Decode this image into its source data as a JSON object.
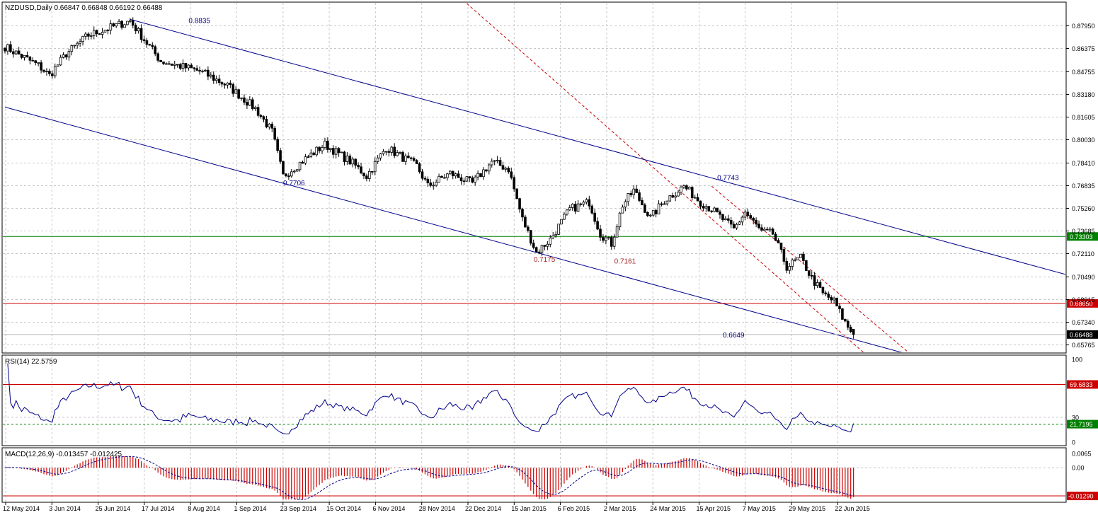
{
  "window": {
    "title": "NZDUSD,Daily 0.66847 0.66848 0.66192 0.66488"
  },
  "chart_data": [
    {
      "type": "candlestick",
      "symbol": "NZDUSD",
      "timeframe": "Daily",
      "header": "NZDUSD,Daily  0.66847 0.66848 0.66192 0.66488",
      "last_quote": {
        "open": 0.66847,
        "high": 0.66848,
        "low": 0.66192,
        "close": 0.66488
      },
      "ylim": [
        0.6525,
        0.895
      ],
      "y_ticks": [
        "0.87950",
        "0.86375",
        "0.84755",
        "0.83180",
        "0.81605",
        "0.80030",
        "0.78410",
        "0.76835",
        "0.75260",
        "0.73685",
        "0.72110",
        "0.70490",
        "0.68915",
        "0.67340",
        "0.65765"
      ],
      "x_ticks": [
        "12 May 2014",
        "3 Jun 2014",
        "25 Jun 2014",
        "17 Jul 2014",
        "8 Aug 2014",
        "1 Sep 2014",
        "23 Sep 2014",
        "15 Oct 2014",
        "6 Nov 2014",
        "28 Nov 2014",
        "22 Dec 2014",
        "15 Jan 2015",
        "6 Feb 2015",
        "2 Mar 2015",
        "24 Mar 2015",
        "15 Apr 2015",
        "7 May 2015",
        "29 May 2015",
        "22 Jun 2015"
      ],
      "close_anchors": [
        [
          0,
          0.865
        ],
        [
          12,
          0.852
        ],
        [
          16,
          0.845
        ],
        [
          22,
          0.86
        ],
        [
          30,
          0.873
        ],
        [
          45,
          0.883
        ],
        [
          50,
          0.87
        ],
        [
          56,
          0.855
        ],
        [
          70,
          0.848
        ],
        [
          80,
          0.838
        ],
        [
          90,
          0.822
        ],
        [
          96,
          0.806
        ],
        [
          100,
          0.775
        ],
        [
          110,
          0.79
        ],
        [
          115,
          0.797
        ],
        [
          125,
          0.784
        ],
        [
          130,
          0.775
        ],
        [
          137,
          0.795
        ],
        [
          148,
          0.782
        ],
        [
          152,
          0.768
        ],
        [
          160,
          0.777
        ],
        [
          168,
          0.77
        ],
        [
          175,
          0.785
        ],
        [
          181,
          0.78
        ],
        [
          186,
          0.745
        ],
        [
          191,
          0.722
        ],
        [
          196,
          0.731
        ],
        [
          203,
          0.752
        ],
        [
          210,
          0.757
        ],
        [
          214,
          0.735
        ],
        [
          218,
          0.728
        ],
        [
          222,
          0.755
        ],
        [
          226,
          0.765
        ],
        [
          232,
          0.746
        ],
        [
          237,
          0.758
        ],
        [
          244,
          0.768
        ],
        [
          250,
          0.757
        ],
        [
          254,
          0.752
        ],
        [
          262,
          0.738
        ],
        [
          266,
          0.75
        ],
        [
          272,
          0.736
        ],
        [
          276,
          0.735
        ],
        [
          281,
          0.712
        ],
        [
          286,
          0.718
        ],
        [
          290,
          0.704
        ],
        [
          294,
          0.693
        ],
        [
          298,
          0.688
        ],
        [
          302,
          0.673
        ],
        [
          305,
          0.66488
        ]
      ],
      "series": [
        {
          "name": "NZDUSD"
        }
      ],
      "hlines": [
        {
          "value": 0.73303,
          "label": "0.73303",
          "color": "#008000"
        },
        {
          "value": 0.6865,
          "label": "0.68650",
          "color": "#cc0000"
        },
        {
          "value": 0.66488,
          "label": "0.66488",
          "color": "#000000"
        }
      ],
      "trend_lines": [
        {
          "points": [
            [
              45,
              0.884
            ],
            [
              390,
              0.702
            ]
          ],
          "color": "#00008b",
          "style": "solid"
        },
        {
          "points": [
            [
              0,
              0.823
            ],
            [
              323,
              0.652
            ]
          ],
          "color": "#00008b",
          "style": "solid"
        },
        {
          "points": [
            [
              166,
              0.895
            ],
            [
              310,
              0.65
            ]
          ],
          "color": "#cc0000",
          "style": "dashed"
        },
        {
          "points": [
            [
              254,
              0.768
            ],
            [
              325,
              0.652
            ]
          ],
          "color": "#cc0000",
          "style": "dashed"
        }
      ],
      "annotations": [
        {
          "text": "0.8835",
          "x": 66,
          "value": 0.8835,
          "color": "#00008b"
        },
        {
          "text": "0.7743",
          "x": 256,
          "value": 0.7743,
          "color": "#00008b"
        },
        {
          "text": "0.7706",
          "x": 100,
          "value": 0.7706,
          "color": "#00008b"
        },
        {
          "text": "0.7175",
          "x": 190,
          "value": 0.7175,
          "color": "#a52a2a"
        },
        {
          "text": "0.7161",
          "x": 219,
          "value": 0.7161,
          "color": "#a52a2a"
        },
        {
          "text": "0.6649",
          "x": 258,
          "value": 0.6649,
          "color": "#00008b"
        }
      ],
      "colors": {
        "up": "#ffffff",
        "down": "#000000",
        "outline": "#000000"
      }
    },
    {
      "type": "line",
      "title": "RSI(14) 22.5759",
      "ylim": [
        0,
        100
      ],
      "y_ticks": [
        "100",
        "30",
        "0"
      ],
      "levels": [
        {
          "value": 69.6833,
          "label": "69.6833",
          "color": "#cc0000"
        },
        {
          "value": 21.7195,
          "label": "21.7195",
          "color": "#008000"
        }
      ],
      "last_value": 22.5759,
      "line_color": "#00008b"
    },
    {
      "type": "histogram",
      "title": "MACD(12,26,9) -0.013457 -0.012425",
      "ylim": [
        -0.0145,
        0.0075
      ],
      "y_ticks": [
        "0.0065",
        "0.00"
      ],
      "level": {
        "value": -0.0129,
        "label": "-0.01290",
        "color": "#cc0000"
      },
      "macd": -0.013457,
      "signal": -0.012425,
      "bar_color": "#cc0000",
      "signal_color": "#00008b"
    }
  ]
}
